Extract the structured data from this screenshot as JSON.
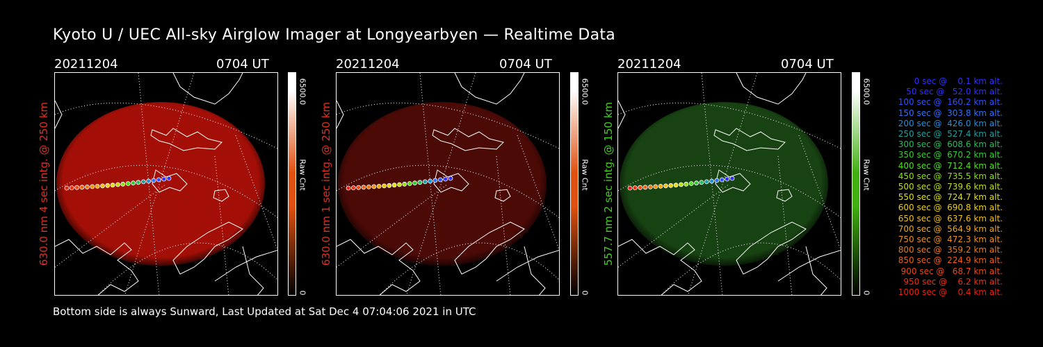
{
  "title": "Kyoto U / UEC All-sky Airglow Imager at Longyearbyen — Realtime Data",
  "footer": "Bottom side is always Sunward, Last Updated at Sat Dec  4 07:04:06 2021 in UTC",
  "panels": [
    {
      "date": "20211204",
      "time": "0704 UT",
      "ylabel": "630.0 nm 4 sec intg. @ 250 km",
      "color": "#e03020",
      "glow": "#c01208",
      "glow_opacity": 0.85,
      "cbar_max": "6500.0",
      "cbar_min": "0",
      "cbar_label": "Raw Cnt",
      "cbar_color": "#e05010"
    },
    {
      "date": "20211204",
      "time": "0704 UT",
      "ylabel": "630.0 nm 1 sec intg. @ 250 km",
      "color": "#e03020",
      "glow": "#5a0c08",
      "glow_opacity": 0.85,
      "cbar_max": "6500.0",
      "cbar_min": "0",
      "cbar_label": "Raw Cnt",
      "cbar_color": "#e05010"
    },
    {
      "date": "20211204",
      "time": "0704 UT",
      "ylabel": "557.7 nm 2 sec intg. @ 150 km",
      "color": "#40d020",
      "glow": "#1a4a14",
      "glow_opacity": 0.9,
      "cbar_max": "6500.0",
      "cbar_min": "0",
      "cbar_label": "Raw Cnt",
      "cbar_color": "#40b010"
    }
  ],
  "legend": [
    {
      "text": "   0 sec @    0.1 km alt.",
      "color": "#3030ff"
    },
    {
      "text": "  50 sec @   52.0 km alt.",
      "color": "#3030ff"
    },
    {
      "text": " 100 sec @  160.2 km alt.",
      "color": "#3050ff"
    },
    {
      "text": " 150 sec @  303.8 km alt.",
      "color": "#3070ff"
    },
    {
      "text": " 200 sec @  426.0 km alt.",
      "color": "#2090e0"
    },
    {
      "text": " 250 sec @  527.4 km alt.",
      "color": "#20a0a0"
    },
    {
      "text": " 300 sec @  608.6 km alt.",
      "color": "#20c060"
    },
    {
      "text": " 350 sec @  670.2 km alt.",
      "color": "#30d030"
    },
    {
      "text": " 400 sec @  712.4 km alt.",
      "color": "#50e020"
    },
    {
      "text": " 450 sec @  735.5 km alt.",
      "color": "#90e010"
    },
    {
      "text": " 500 sec @  739.6 km alt.",
      "color": "#c0e010"
    },
    {
      "text": " 550 sec @  724.7 km alt.",
      "color": "#e0e010"
    },
    {
      "text": " 600 sec @  690.8 km alt.",
      "color": "#f0d010"
    },
    {
      "text": " 650 sec @  637.6 km alt.",
      "color": "#f0c010"
    },
    {
      "text": " 700 sec @  564.9 km alt.",
      "color": "#f0a810"
    },
    {
      "text": " 750 sec @  472.3 km alt.",
      "color": "#f09010"
    },
    {
      "text": " 800 sec @  359.2 km alt.",
      "color": "#f07810"
    },
    {
      "text": " 850 sec @  224.9 km alt.",
      "color": "#f06010"
    },
    {
      "text": " 900 sec @   68.7 km alt.",
      "color": "#f04810"
    },
    {
      "text": " 950 sec @    6.2 km alt.",
      "color": "#f03010"
    },
    {
      "text": "1000 sec @    0.4 km alt.",
      "color": "#f02010"
    }
  ]
}
